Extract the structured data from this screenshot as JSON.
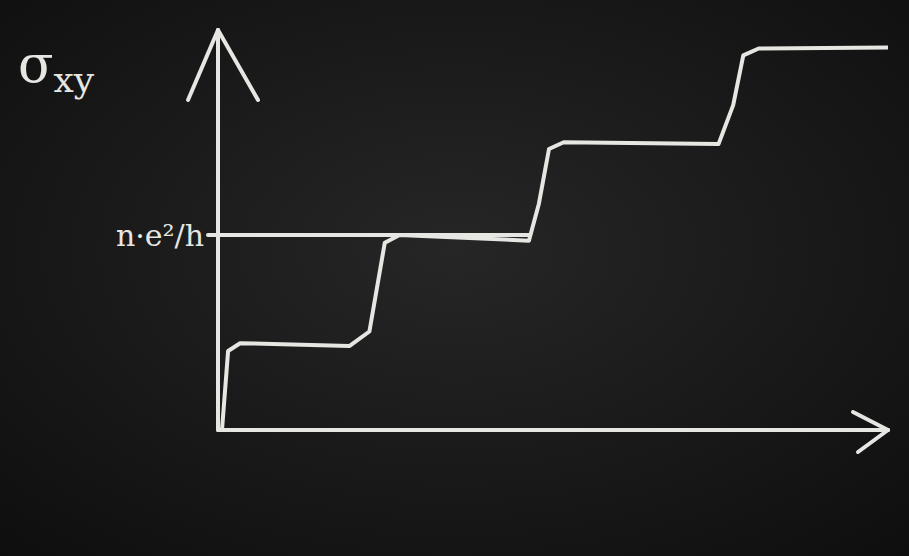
{
  "chart_data": {
    "type": "line",
    "y_label": "σxy",
    "x": [
      0.06,
      0.15,
      0.33,
      1.96,
      2.26,
      2.49,
      2.71,
      4.64,
      4.79,
      4.94,
      5.16,
      7.47,
      7.69,
      7.84,
      8.07,
      10
    ],
    "series": [
      {
        "name": "σxy",
        "color": "#e6e6e2",
        "line_style": "solid",
        "values": [
          0,
          0.81,
          0.89,
          0.86,
          1.01,
          1.92,
          2.0,
          1.94,
          2.32,
          2.88,
          2.95,
          2.93,
          3.33,
          3.84,
          3.91,
          3.92
        ]
      }
    ],
    "xlim": [
      0,
      10
    ],
    "ylim": [
      0,
      4.1
    ],
    "yticks": [
      {
        "value": 2,
        "label": "n·e²/h"
      }
    ],
    "tick_labels": "y",
    "grid": false
  }
}
